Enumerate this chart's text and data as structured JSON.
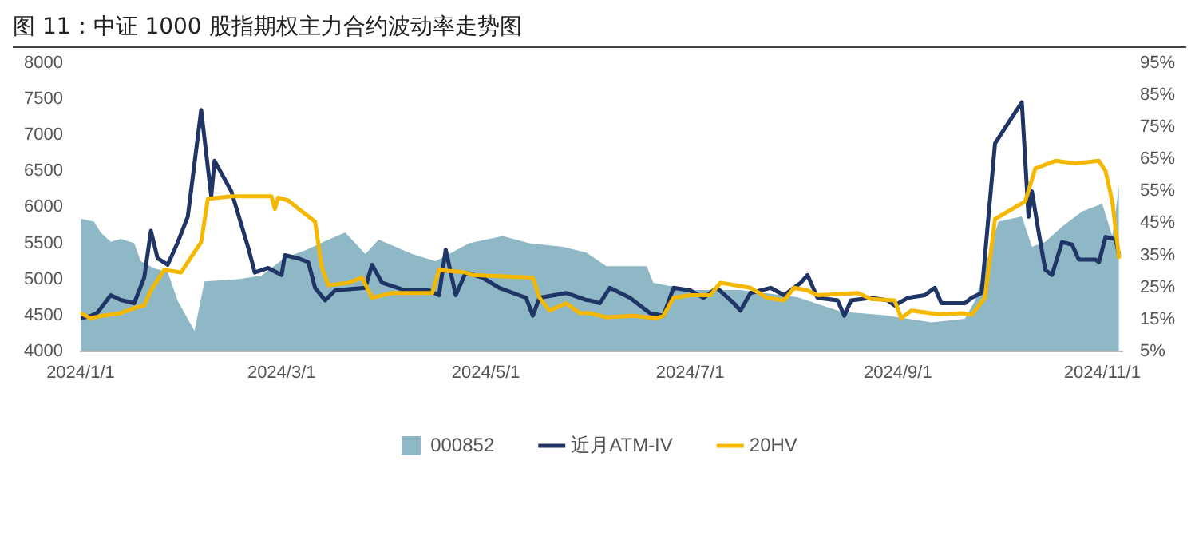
{
  "chart_data": {
    "type": "line",
    "title": "图 11：中证 1000 股指期权主力合约波动率走势图",
    "xlim": [
      "2024-01-01",
      "2024-11-07"
    ],
    "xticks": [
      {
        "value": "2024-01-01",
        "label": "2024/1/1"
      },
      {
        "value": "2024-03-01",
        "label": "2024/3/1"
      },
      {
        "value": "2024-05-01",
        "label": "2024/5/1"
      },
      {
        "value": "2024-07-01",
        "label": "2024/7/1"
      },
      {
        "value": "2024-09-01",
        "label": "2024/9/1"
      },
      {
        "value": "2024-11-01",
        "label": "2024/11/1"
      }
    ],
    "ylim": [
      4000,
      8000
    ],
    "yticks": [
      4000,
      4500,
      5000,
      5500,
      6000,
      6500,
      7000,
      7500,
      8000
    ],
    "y2lim": [
      5,
      95
    ],
    "y2ticks": [
      {
        "value": 5,
        "label": "5%"
      },
      {
        "value": 15,
        "label": "15%"
      },
      {
        "value": 25,
        "label": "25%"
      },
      {
        "value": 35,
        "label": "35%"
      },
      {
        "value": 45,
        "label": "45%"
      },
      {
        "value": 55,
        "label": "55%"
      },
      {
        "value": 65,
        "label": "65%"
      },
      {
        "value": 75,
        "label": "75%"
      },
      {
        "value": 85,
        "label": "85%"
      },
      {
        "value": 95,
        "label": "95%"
      }
    ],
    "grid": false,
    "legend": "bottom",
    "series": [
      {
        "name": "000852",
        "type": "area",
        "color": "#8fb8c6",
        "x": [
          "2024-01-01",
          "2024-01-05",
          "2024-01-07",
          "2024-01-10",
          "2024-01-13",
          "2024-01-17",
          "2024-01-19",
          "2024-01-23",
          "2024-01-27",
          "2024-01-30",
          "2024-02-04",
          "2024-02-07",
          "2024-02-17",
          "2024-02-24",
          "2024-03-02",
          "2024-03-08",
          "2024-03-15",
          "2024-03-20",
          "2024-03-26",
          "2024-03-30",
          "2024-04-04",
          "2024-04-09",
          "2024-04-16",
          "2024-04-26",
          "2024-05-06",
          "2024-05-14",
          "2024-05-24",
          "2024-05-31",
          "2024-06-06",
          "2024-06-18",
          "2024-06-20",
          "2024-07-01",
          "2024-07-16",
          "2024-08-02",
          "2024-08-15",
          "2024-08-28",
          "2024-09-11",
          "2024-09-21",
          "2024-09-24",
          "2024-10-01",
          "2024-10-08",
          "2024-10-11",
          "2024-10-15",
          "2024-10-20",
          "2024-10-26",
          "2024-11-01",
          "2024-11-04",
          "2024-11-06"
        ],
        "values": [
          5840,
          5800,
          5650,
          5520,
          5560,
          5500,
          5250,
          5150,
          5100,
          4700,
          4280,
          4970,
          5000,
          5050,
          5300,
          5400,
          5550,
          5650,
          5350,
          5550,
          5450,
          5350,
          5250,
          5500,
          5600,
          5500,
          5450,
          5370,
          5180,
          5180,
          4950,
          4850,
          4850,
          4750,
          4550,
          4500,
          4400,
          4450,
          4700,
          5800,
          5870,
          5450,
          5520,
          5730,
          5940,
          6050,
          5600,
          6290
        ]
      },
      {
        "name": "近月ATM-IV",
        "type": "line",
        "axis": "y2",
        "color": "#1f3566",
        "x": [
          "2024-01-01",
          "2024-01-04",
          "2024-01-06",
          "2024-01-10",
          "2024-01-13",
          "2024-01-17",
          "2024-01-20",
          "2024-01-22",
          "2024-01-24",
          "2024-01-27",
          "2024-01-30",
          "2024-02-02",
          "2024-02-06",
          "2024-02-09",
          "2024-02-10",
          "2024-02-15",
          "2024-02-20",
          "2024-02-22",
          "2024-02-26",
          "2024-03-01",
          "2024-03-02",
          "2024-03-06",
          "2024-03-09",
          "2024-03-11",
          "2024-03-14",
          "2024-03-17",
          "2024-03-26",
          "2024-03-28",
          "2024-03-31",
          "2024-04-07",
          "2024-04-14",
          "2024-04-17",
          "2024-04-19",
          "2024-04-22",
          "2024-04-25",
          "2024-04-30",
          "2024-05-05",
          "2024-05-13",
          "2024-05-15",
          "2024-05-17",
          "2024-05-25",
          "2024-05-31",
          "2024-06-01",
          "2024-06-04",
          "2024-06-07",
          "2024-06-13",
          "2024-06-19",
          "2024-06-23",
          "2024-06-26",
          "2024-07-01",
          "2024-07-05",
          "2024-07-09",
          "2024-07-14",
          "2024-07-16",
          "2024-07-19",
          "2024-07-25",
          "2024-07-29",
          "2024-08-03",
          "2024-08-05",
          "2024-08-08",
          "2024-08-14",
          "2024-08-16",
          "2024-08-18",
          "2024-08-24",
          "2024-08-29",
          "2024-08-31",
          "2024-09-04",
          "2024-09-09",
          "2024-09-12",
          "2024-09-14",
          "2024-09-21",
          "2024-09-23",
          "2024-09-26",
          "2024-09-30",
          "2024-10-08",
          "2024-10-10",
          "2024-10-11",
          "2024-10-13",
          "2024-10-15",
          "2024-10-17",
          "2024-10-20",
          "2024-10-23",
          "2024-10-25",
          "2024-10-30",
          "2024-10-31",
          "2024-11-02",
          "2024-11-05",
          "2024-11-06"
        ],
        "values": [
          15.3,
          16,
          17,
          22.5,
          21,
          20,
          28,
          42.6,
          34,
          32,
          39,
          47,
          80.4,
          53.4,
          64.5,
          55,
          37.5,
          29.6,
          31,
          28.8,
          35,
          34,
          32.8,
          24.8,
          20.9,
          24,
          24.8,
          32,
          26.4,
          24,
          24,
          22.5,
          36.7,
          22.5,
          29.6,
          28,
          24.8,
          21.7,
          16.1,
          21.7,
          23.2,
          21,
          20.9,
          20,
          24.8,
          21.7,
          16.9,
          16.1,
          24.8,
          24,
          21.7,
          24.8,
          20,
          17.7,
          23.2,
          24.8,
          22.5,
          26.4,
          28.8,
          21.7,
          20.9,
          16.1,
          20.9,
          21.7,
          20.9,
          19.3,
          21.7,
          22.5,
          24.8,
          20,
          20,
          21.7,
          23.2,
          70,
          82.8,
          47,
          55,
          42.3,
          30.4,
          28.8,
          39.1,
          38.3,
          33.6,
          33.6,
          32.8,
          40.7,
          40,
          35
        ]
      },
      {
        "name": "20HV",
        "type": "line",
        "axis": "y2",
        "color": "#f5b800",
        "x": [
          "2024-01-01",
          "2024-01-04",
          "2024-01-07",
          "2024-01-13",
          "2024-01-17",
          "2024-01-20",
          "2024-01-22",
          "2024-01-26",
          "2024-01-31",
          "2024-02-03",
          "2024-02-06",
          "2024-02-08",
          "2024-02-15",
          "2024-02-27",
          "2024-02-28",
          "2024-02-29",
          "2024-03-03",
          "2024-03-07",
          "2024-03-11",
          "2024-03-13",
          "2024-03-15",
          "2024-03-21",
          "2024-03-25",
          "2024-03-28",
          "2024-04-03",
          "2024-04-15",
          "2024-04-17",
          "2024-04-25",
          "2024-04-27",
          "2024-05-15",
          "2024-05-17",
          "2024-05-20",
          "2024-05-25",
          "2024-05-29",
          "2024-06-01",
          "2024-06-06",
          "2024-06-14",
          "2024-06-21",
          "2024-06-23",
          "2024-06-26",
          "2024-07-01",
          "2024-07-07",
          "2024-07-10",
          "2024-07-19",
          "2024-07-24",
          "2024-07-29",
          "2024-08-01",
          "2024-08-05",
          "2024-08-08",
          "2024-08-20",
          "2024-08-24",
          "2024-08-31",
          "2024-09-02",
          "2024-09-05",
          "2024-09-13",
          "2024-09-20",
          "2024-09-23",
          "2024-09-27",
          "2024-09-30",
          "2024-10-09",
          "2024-10-12",
          "2024-10-18",
          "2024-10-24",
          "2024-10-31",
          "2024-11-02",
          "2024-11-04",
          "2024-11-06"
        ],
        "values": [
          16.9,
          15.3,
          16,
          16.9,
          18.5,
          19.3,
          24,
          30.4,
          29.6,
          34.4,
          39.1,
          52.6,
          53.4,
          53.4,
          49.4,
          53,
          52.1,
          48.7,
          45.5,
          31.2,
          25.6,
          26.4,
          28,
          21.7,
          23.2,
          23.2,
          30.4,
          29.6,
          28.8,
          28,
          21.7,
          17.7,
          20,
          16.9,
          16.9,
          15.6,
          16.1,
          15.3,
          16.1,
          21.7,
          22.5,
          22.5,
          26.4,
          24.8,
          21.7,
          20.9,
          24.8,
          24,
          22.5,
          23.2,
          21.3,
          20.9,
          15.3,
          17.7,
          16.6,
          16.9,
          16.4,
          21.7,
          46.3,
          51.8,
          62.1,
          64.5,
          63.7,
          64.5,
          61.3,
          51.8,
          34.4
        ]
      }
    ]
  }
}
